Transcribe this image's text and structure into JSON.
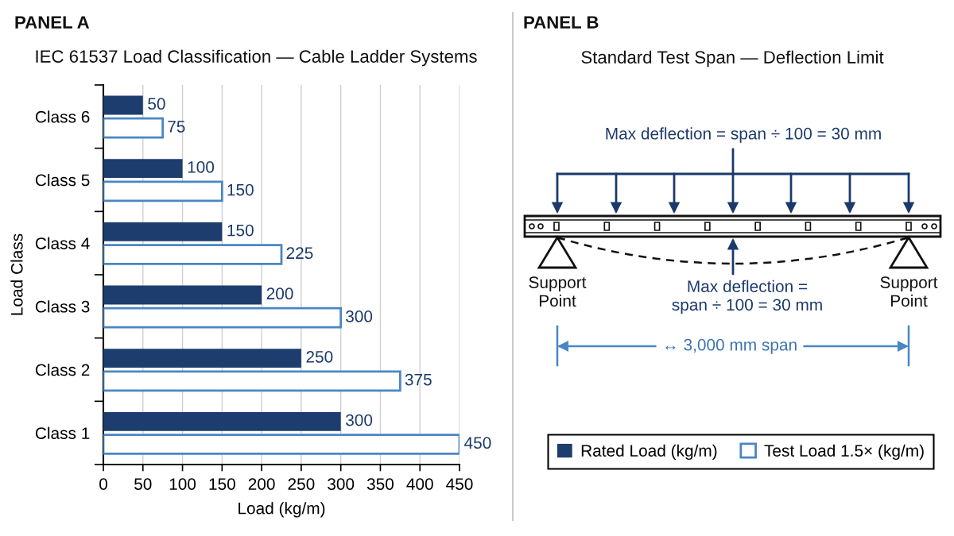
{
  "chart_data": [
    {
      "type": "bar",
      "orientation": "horizontal",
      "title": "IEC 61537 Load Classification — Cable Ladder Systems",
      "xlabel": "Load (kg/m)",
      "ylabel": "Load Class",
      "categories": [
        "Class 6",
        "Class 5",
        "Class 4",
        "Class 3",
        "Class 2",
        "Class 1"
      ],
      "series": [
        {
          "name": "Rated Load (kg/m)",
          "color": "#1c3d6e",
          "values": [
            50,
            100,
            150,
            200,
            250,
            300
          ]
        },
        {
          "name": "Test Load 1.5× (kg/m)",
          "color": "#4a86c4",
          "values": [
            75,
            150,
            225,
            300,
            375,
            450
          ]
        }
      ],
      "xlim": [
        0,
        450
      ],
      "xticks": [
        0,
        50,
        100,
        150,
        200,
        250,
        300,
        350,
        400,
        450
      ],
      "grid": "x",
      "legend": "bottom right",
      "data_labels": true,
      "annotations": [
        "PANEL A"
      ]
    },
    {
      "type": "other",
      "title": "Standard Test Span — Deflection Limit",
      "annotations": [
        "PANEL B",
        "Max deflection = span ÷ 100 = 30 mm",
        "Support\nPoint",
        "Support\nPoint",
        "Max deflection =\nspan ÷ 100 = 30 mm",
        "↔ 3,000 mm span"
      ]
    }
  ]
}
